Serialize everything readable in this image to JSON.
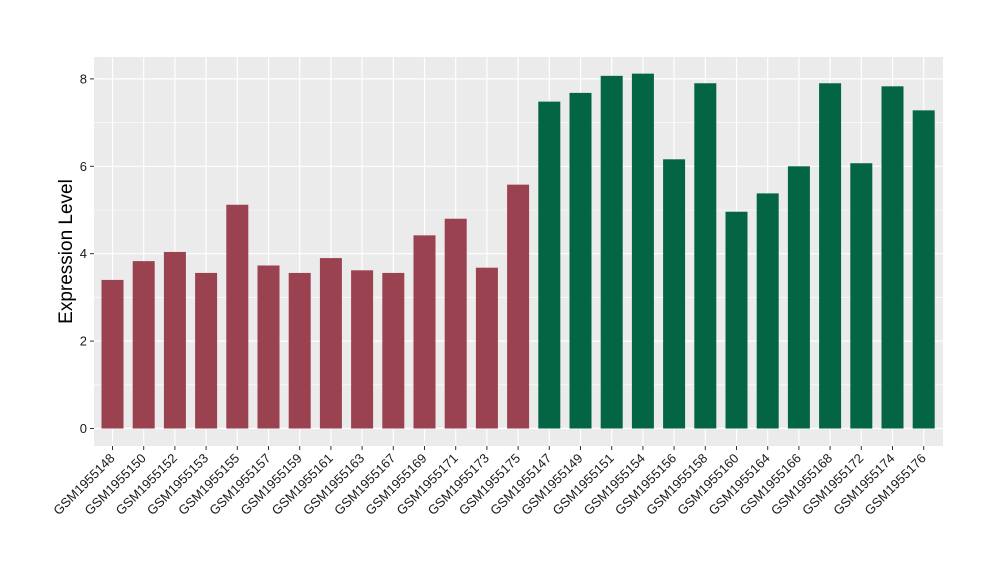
{
  "chart_data": {
    "type": "bar",
    "title": "",
    "xlabel": "",
    "ylabel": "Expression Level",
    "ylim": [
      0,
      8.4
    ],
    "yticks": [
      0,
      2,
      4,
      6,
      8
    ],
    "grid": true,
    "legend": "none",
    "categories": [
      "GSM1955148",
      "GSM1955150",
      "GSM1955152",
      "GSM1955153",
      "GSM1955155",
      "GSM1955157",
      "GSM1955159",
      "GSM1955161",
      "GSM1955163",
      "GSM1955167",
      "GSM1955169",
      "GSM1955171",
      "GSM1955173",
      "GSM1955175",
      "GSM1955147",
      "GSM1955149",
      "GSM1955151",
      "GSM1955154",
      "GSM1955156",
      "GSM1955158",
      "GSM1955160",
      "GSM1955164",
      "GSM1955166",
      "GSM1955168",
      "GSM1955172",
      "GSM1955174",
      "GSM1955176"
    ],
    "values": [
      3.4,
      3.83,
      4.04,
      3.56,
      5.12,
      3.73,
      3.56,
      3.9,
      3.62,
      3.56,
      4.42,
      4.8,
      3.68,
      5.58,
      7.48,
      7.68,
      8.07,
      8.12,
      6.16,
      7.9,
      4.96,
      5.38,
      6.0,
      7.9,
      6.07,
      7.83,
      7.28
    ],
    "bar_colors": [
      "#9B4251",
      "#9B4251",
      "#9B4251",
      "#9B4251",
      "#9B4251",
      "#9B4251",
      "#9B4251",
      "#9B4251",
      "#9B4251",
      "#9B4251",
      "#9B4251",
      "#9B4251",
      "#9B4251",
      "#9B4251",
      "#036544",
      "#036544",
      "#036544",
      "#036544",
      "#036544",
      "#036544",
      "#036544",
      "#036544",
      "#036544",
      "#036544",
      "#036544",
      "#036544",
      "#036544"
    ],
    "panel_background": "#EBEBEB",
    "gridline_color": "#FFFFFF"
  }
}
